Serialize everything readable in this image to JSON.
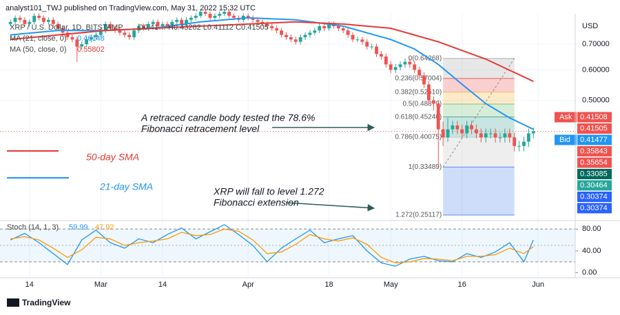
{
  "header": {
    "publisher": "analyst101_TWJ published on TradingView.com, May 31, 2022 15:32 UTC",
    "symbol": "XRP / U.S. Dollar, 1D, BITSTAMP",
    "ohlc": "O0.41… H0.43282 L0.41112 C0.41505",
    "ma21_label": "MA (21, close, 0)",
    "ma21_value": "0.46148",
    "ma50_label": "MA (50, close, 0)",
    "ma50_value": "0.55802",
    "currency": "USD",
    "logo": "TradingView"
  },
  "annotations": {
    "fib_note_1": "A retraced candle body tested the 78.6%",
    "fib_note_2": "Fibonacci retracement level",
    "ext_note_1": "XRP will fall to level 1.272",
    "ext_note_2": "Fibonacci extension",
    "sma50": "50-day SMA",
    "sma21": "21-day SMA"
  },
  "chart_data": [
    {
      "type": "candlestick",
      "log_scale": true,
      "up_color": "#26a69a",
      "down_color": "#ef5350",
      "xlim": [
        -2.2,
        118.8
      ],
      "ylim": [
        0.245,
        0.84
      ],
      "xticks": [
        {
          "value": 4,
          "label": "14"
        },
        {
          "value": 19,
          "label": "Mar"
        },
        {
          "value": 32,
          "label": "14"
        },
        {
          "value": 50,
          "label": "Apr"
        },
        {
          "value": 67,
          "label": "18"
        },
        {
          "value": 80,
          "label": "May"
        },
        {
          "value": 95,
          "label": "16"
        },
        {
          "value": 111,
          "label": "Jun"
        }
      ],
      "yticks": [
        {
          "value": 0.7,
          "label": "0.70000"
        },
        {
          "value": 0.6,
          "label": "0.60000"
        },
        {
          "value": 0.5,
          "label": "0.50000"
        }
      ],
      "candles": [
        [
          0.79,
          0.812,
          0.778,
          0.8
        ],
        [
          0.8,
          0.832,
          0.788,
          0.82
        ],
        [
          0.82,
          0.832,
          0.798,
          0.81
        ],
        [
          0.81,
          0.822,
          0.778,
          0.79
        ],
        [
          0.79,
          0.812,
          0.778,
          0.8
        ],
        [
          0.8,
          0.842,
          0.788,
          0.83
        ],
        [
          0.83,
          0.842,
          0.808,
          0.82
        ],
        [
          0.82,
          0.832,
          0.788,
          0.8
        ],
        [
          0.8,
          0.822,
          0.788,
          0.81
        ],
        [
          0.81,
          0.822,
          0.778,
          0.79
        ],
        [
          0.79,
          0.802,
          0.758,
          0.77
        ],
        [
          0.77,
          0.782,
          0.738,
          0.75
        ],
        [
          0.75,
          0.762,
          0.718,
          0.73
        ],
        [
          0.73,
          0.742,
          0.708,
          0.72
        ],
        [
          0.72,
          0.732,
          0.63,
          0.69
        ],
        [
          0.69,
          0.712,
          0.678,
          0.7
        ],
        [
          0.7,
          0.732,
          0.688,
          0.72
        ],
        [
          0.72,
          0.742,
          0.708,
          0.73
        ],
        [
          0.73,
          0.752,
          0.718,
          0.74
        ],
        [
          0.74,
          0.772,
          0.728,
          0.76
        ],
        [
          0.76,
          0.802,
          0.748,
          0.79
        ],
        [
          0.79,
          0.802,
          0.758,
          0.77
        ],
        [
          0.77,
          0.782,
          0.748,
          0.76
        ],
        [
          0.76,
          0.772,
          0.738,
          0.75
        ],
        [
          0.75,
          0.762,
          0.728,
          0.74
        ],
        [
          0.74,
          0.752,
          0.718,
          0.73
        ],
        [
          0.73,
          0.772,
          0.718,
          0.76
        ],
        [
          0.76,
          0.792,
          0.748,
          0.78
        ],
        [
          0.78,
          0.792,
          0.758,
          0.77
        ],
        [
          0.77,
          0.802,
          0.758,
          0.79
        ],
        [
          0.79,
          0.812,
          0.778,
          0.8
        ],
        [
          0.8,
          0.812,
          0.768,
          0.78
        ],
        [
          0.78,
          0.802,
          0.768,
          0.79
        ],
        [
          0.79,
          0.802,
          0.768,
          0.78
        ],
        [
          0.78,
          0.812,
          0.768,
          0.8
        ],
        [
          0.8,
          0.822,
          0.788,
          0.81
        ],
        [
          0.81,
          0.822,
          0.778,
          0.79
        ],
        [
          0.79,
          0.822,
          0.778,
          0.81
        ],
        [
          0.81,
          0.832,
          0.798,
          0.82
        ],
        [
          0.82,
          0.842,
          0.808,
          0.83
        ],
        [
          0.83,
          0.862,
          0.818,
          0.85
        ],
        [
          0.85,
          0.862,
          0.828,
          0.84
        ],
        [
          0.84,
          0.852,
          0.808,
          0.82
        ],
        [
          0.82,
          0.842,
          0.808,
          0.83
        ],
        [
          0.83,
          0.852,
          0.818,
          0.84
        ],
        [
          0.84,
          0.862,
          0.828,
          0.85
        ],
        [
          0.85,
          0.862,
          0.818,
          0.83
        ],
        [
          0.83,
          0.842,
          0.808,
          0.82
        ],
        [
          0.82,
          0.832,
          0.798,
          0.81
        ],
        [
          0.81,
          0.842,
          0.798,
          0.83
        ],
        [
          0.83,
          0.842,
          0.808,
          0.82
        ],
        [
          0.82,
          0.832,
          0.798,
          0.81
        ],
        [
          0.81,
          0.822,
          0.788,
          0.8
        ],
        [
          0.8,
          0.812,
          0.778,
          0.79
        ],
        [
          0.79,
          0.802,
          0.768,
          0.78
        ],
        [
          0.78,
          0.792,
          0.758,
          0.77
        ],
        [
          0.77,
          0.782,
          0.748,
          0.76
        ],
        [
          0.76,
          0.772,
          0.728,
          0.74
        ],
        [
          0.74,
          0.752,
          0.718,
          0.73
        ],
        [
          0.73,
          0.742,
          0.708,
          0.72
        ],
        [
          0.72,
          0.732,
          0.698,
          0.71
        ],
        [
          0.71,
          0.742,
          0.698,
          0.73
        ],
        [
          0.73,
          0.752,
          0.718,
          0.74
        ],
        [
          0.74,
          0.762,
          0.728,
          0.75
        ],
        [
          0.75,
          0.772,
          0.738,
          0.76
        ],
        [
          0.76,
          0.792,
          0.748,
          0.78
        ],
        [
          0.78,
          0.792,
          0.758,
          0.77
        ],
        [
          0.77,
          0.802,
          0.758,
          0.79
        ],
        [
          0.79,
          0.802,
          0.768,
          0.78
        ],
        [
          0.78,
          0.792,
          0.758,
          0.77
        ],
        [
          0.77,
          0.782,
          0.748,
          0.76
        ],
        [
          0.76,
          0.772,
          0.728,
          0.74
        ],
        [
          0.74,
          0.752,
          0.708,
          0.72
        ],
        [
          0.72,
          0.732,
          0.708,
          0.72
        ],
        [
          0.72,
          0.732,
          0.698,
          0.71
        ],
        [
          0.71,
          0.722,
          0.678,
          0.69
        ],
        [
          0.69,
          0.702,
          0.678,
          0.69
        ],
        [
          0.69,
          0.702,
          0.648,
          0.66
        ],
        [
          0.66,
          0.672,
          0.638,
          0.65
        ],
        [
          0.65,
          0.662,
          0.608,
          0.62
        ],
        [
          0.62,
          0.632,
          0.588,
          0.6
        ],
        [
          0.6,
          0.622,
          0.588,
          0.61
        ],
        [
          0.61,
          0.632,
          0.598,
          0.62
        ],
        [
          0.62,
          0.642,
          0.608,
          0.63
        ],
        [
          0.63,
          0.642,
          0.608,
          0.62
        ],
        [
          0.62,
          0.632,
          0.588,
          0.6
        ],
        [
          0.6,
          0.612,
          0.568,
          0.58
        ],
        [
          0.58,
          0.592,
          0.538,
          0.55
        ],
        [
          0.55,
          0.562,
          0.488,
          0.5
        ],
        [
          0.5,
          0.512,
          0.47,
          0.49
        ],
        [
          0.49,
          0.5,
          0.335,
          0.42
        ],
        [
          0.42,
          0.44,
          0.38,
          0.4
        ],
        [
          0.4,
          0.45,
          0.39,
          0.42
        ],
        [
          0.42,
          0.442,
          0.408,
          0.43
        ],
        [
          0.43,
          0.442,
          0.408,
          0.42
        ],
        [
          0.42,
          0.432,
          0.398,
          0.41
        ],
        [
          0.41,
          0.442,
          0.398,
          0.43
        ],
        [
          0.43,
          0.442,
          0.408,
          0.42
        ],
        [
          0.42,
          0.432,
          0.398,
          0.41
        ],
        [
          0.41,
          0.422,
          0.388,
          0.4
        ],
        [
          0.4,
          0.422,
          0.388,
          0.41
        ],
        [
          0.41,
          0.422,
          0.398,
          0.41
        ],
        [
          0.41,
          0.422,
          0.388,
          0.4
        ],
        [
          0.4,
          0.412,
          0.388,
          0.4
        ],
        [
          0.4,
          0.422,
          0.388,
          0.41
        ],
        [
          0.41,
          0.422,
          0.388,
          0.4
        ],
        [
          0.4,
          0.412,
          0.368,
          0.38
        ],
        [
          0.38,
          0.392,
          0.368,
          0.38
        ],
        [
          0.38,
          0.402,
          0.368,
          0.39
        ],
        [
          0.39,
          0.422,
          0.378,
          0.41
        ],
        [
          0.41,
          0.425,
          0.398,
          0.415
        ]
      ],
      "series": [
        {
          "name": "MA (21, close, 0)",
          "color": "#2196f3",
          "x": [
            0,
            10,
            20,
            30,
            40,
            50,
            60,
            70,
            80,
            85,
            90,
            95,
            100,
            105,
            110
          ],
          "values": [
            0.74,
            0.76,
            0.76,
            0.77,
            0.8,
            0.82,
            0.81,
            0.78,
            0.72,
            0.68,
            0.62,
            0.55,
            0.49,
            0.45,
            0.42
          ]
        },
        {
          "name": "MA (50, close, 0)",
          "color": "#e53935",
          "x": [
            0,
            10,
            20,
            30,
            40,
            50,
            60,
            70,
            80,
            90,
            100,
            110
          ],
          "values": [
            0.72,
            0.74,
            0.76,
            0.77,
            0.78,
            0.79,
            0.8,
            0.79,
            0.77,
            0.71,
            0.64,
            0.56
          ]
        }
      ],
      "last_price": 0.41505,
      "fib": {
        "x": [
          91,
          106
        ],
        "band_colors": [
          "#b0b0b0",
          "#f06060",
          "#f5b94d",
          "#7cc47c",
          "#4aa89a",
          "#c6c6c6",
          "#5b8def"
        ],
        "levels": [
          {
            "label": "0(0.64268)",
            "value": 0.64268
          },
          {
            "label": "0.236(0.57004)",
            "value": 0.57004
          },
          {
            "label": "0.382(0.52510)",
            "value": 0.5251
          },
          {
            "label": "0.5(0.48879)",
            "value": 0.48879
          },
          {
            "label": "0.618(0.45246)",
            "value": 0.45246
          },
          {
            "label": "0.786(0.40075)",
            "value": 0.40075
          },
          {
            "label": "1(0.33489)",
            "value": 0.33489
          },
          {
            "label": "1.272(0.25117)",
            "value": 0.25117
          }
        ]
      },
      "price_tags": [
        {
          "label": "Ask",
          "value": 0.41508,
          "color": "#ef5350"
        },
        {
          "value": 0.41505,
          "color": "#ef5350"
        },
        {
          "label": "Bid",
          "value": 0.41477,
          "color": "#2196f3"
        },
        {
          "value": 0.35843,
          "color": "#ef5350"
        },
        {
          "value": 0.35654,
          "color": "#ef5350"
        },
        {
          "value": 0.33085,
          "color": "#00695c"
        },
        {
          "value": 0.30464,
          "color": "#26a69a"
        },
        {
          "value": 0.30374,
          "color": "#2962ff"
        },
        {
          "value": 0.30374,
          "color": "#2962ff"
        }
      ]
    },
    {
      "type": "line",
      "title": "Stoch (14, 1, 3)",
      "xlim": [
        -2.2,
        118.8
      ],
      "ylim": [
        -8,
        93
      ],
      "band": [
        20,
        80
      ],
      "midline": 50,
      "yticks": [
        {
          "value": 0,
          "label": "0.00"
        },
        {
          "value": 40,
          "label": "40.00"
        },
        {
          "value": 80,
          "label": "80.00"
        }
      ],
      "series": [
        {
          "name": "59.99",
          "color": "#2196f3",
          "x": [
            0,
            3,
            6,
            9,
            12,
            15,
            18,
            21,
            24,
            27,
            30,
            33,
            36,
            39,
            42,
            45,
            48,
            51,
            54,
            57,
            60,
            63,
            66,
            69,
            72,
            75,
            78,
            81,
            84,
            87,
            90,
            93,
            96,
            99,
            102,
            105,
            108,
            110
          ],
          "values": [
            60,
            72,
            55,
            35,
            15,
            60,
            78,
            55,
            45,
            62,
            55,
            70,
            82,
            62,
            75,
            88,
            70,
            50,
            20,
            45,
            62,
            78,
            55,
            62,
            68,
            40,
            18,
            12,
            25,
            30,
            22,
            20,
            35,
            28,
            38,
            55,
            20,
            59.99
          ]
        },
        {
          "name": "47.92",
          "color": "#ff9800",
          "x": [
            0,
            3,
            6,
            9,
            12,
            15,
            18,
            21,
            24,
            27,
            30,
            33,
            36,
            39,
            42,
            45,
            48,
            51,
            54,
            57,
            60,
            63,
            66,
            69,
            72,
            75,
            78,
            81,
            84,
            87,
            90,
            93,
            96,
            99,
            102,
            105,
            108,
            110
          ],
          "values": [
            62,
            66,
            60,
            45,
            28,
            42,
            65,
            62,
            50,
            55,
            58,
            62,
            74,
            68,
            70,
            80,
            76,
            60,
            35,
            38,
            52,
            70,
            62,
            58,
            64,
            52,
            28,
            18,
            20,
            26,
            25,
            22,
            30,
            30,
            33,
            45,
            35,
            47.92
          ]
        }
      ]
    }
  ]
}
